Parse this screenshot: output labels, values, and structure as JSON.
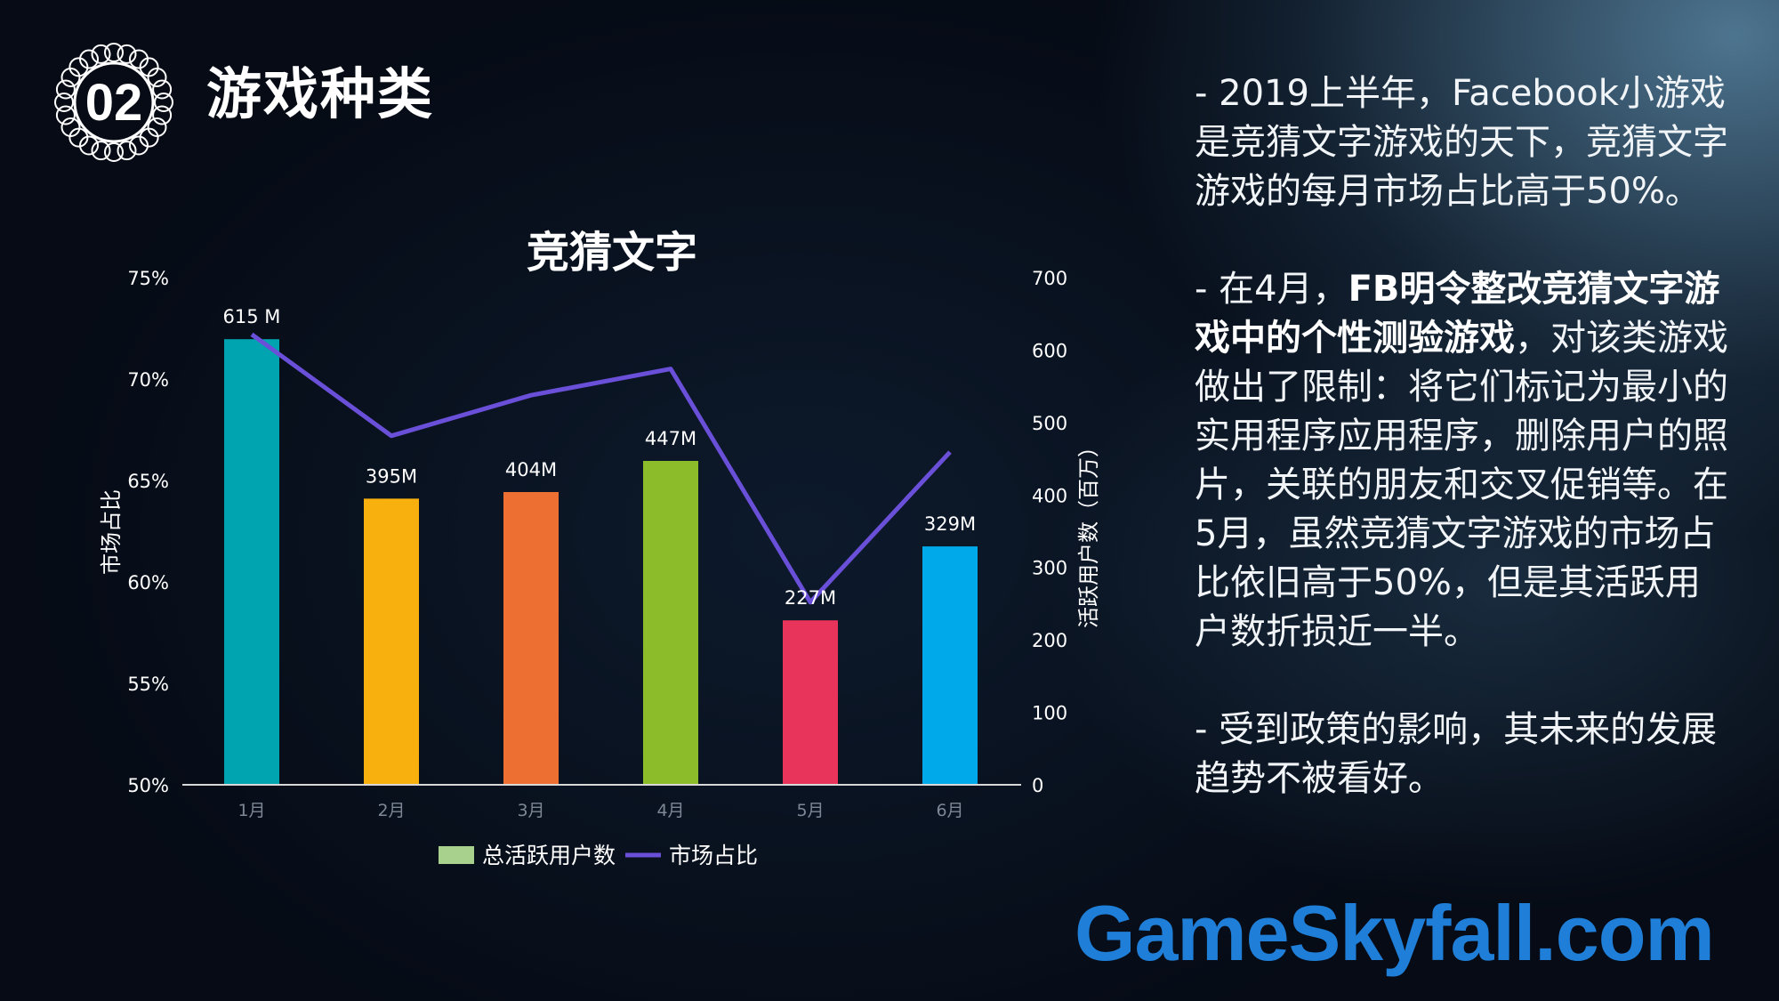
{
  "header": {
    "number": "02",
    "title": "游戏种类"
  },
  "chart_data": {
    "type": "bar+line",
    "title": "竞猜文字",
    "categories": [
      "1月",
      "2月",
      "3月",
      "4月",
      "5月",
      "6月"
    ],
    "series": [
      {
        "name": "总活跃用户数",
        "type": "bar",
        "axis": "right",
        "values": [
          615,
          395,
          404,
          447,
          227,
          329
        ],
        "labels": [
          "615 M",
          "395M",
          "404M",
          "447M",
          "227M",
          "329M"
        ]
      },
      {
        "name": "市场占比",
        "type": "line",
        "axis": "left",
        "values": [
          72.2,
          67.2,
          69.2,
          70.5,
          59.0,
          66.4
        ]
      }
    ],
    "bar_colors": [
      "#00a3b0",
      "#f8b00f",
      "#ed7032",
      "#8cbc2a",
      "#e8335a",
      "#00aaea"
    ],
    "line_color": "#6a4fd8",
    "legend_bar_color": "#a9d18e",
    "y_left": {
      "label": "市场占比",
      "ticks": [
        "75%",
        "70%",
        "65%",
        "60%",
        "55%",
        "50%"
      ],
      "min": 50,
      "max": 75
    },
    "y_right": {
      "label": "活跃用户数（百万）",
      "ticks": [
        "700",
        "600",
        "500",
        "400",
        "300",
        "200",
        "100",
        "0"
      ],
      "min": 0,
      "max": 700
    },
    "legend_position": "bottom"
  },
  "text": {
    "p1": "- 2019上半年，Facebook小游戏是竞猜文字游戏的天下，竞猜文字游戏的每月市场占比高于50%。",
    "p2_prefix": "- 在4月，",
    "p2_bold": "FB明令整改竞猜文字游戏中的个性测验游戏",
    "p2_suffix": "，对该类游戏做出了限制：将它们标记为最小的实用程序应用程序，删除用户的照片，关联的朋友和交叉促销等。在5月，虽然竞猜文字游戏的市场占比依旧高于50%，但是其活跃用户数折损近一半。",
    "p3": "- 受到政策的影响，其未来的发展趋势不被看好。"
  },
  "watermark": "GameSkyfall.com"
}
